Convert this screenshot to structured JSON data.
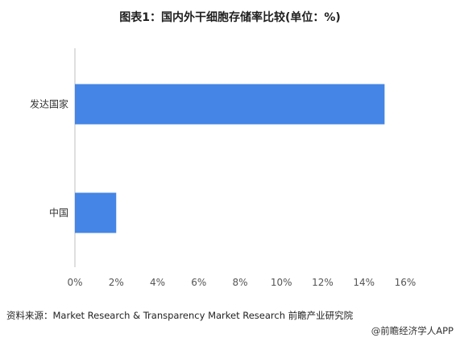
{
  "chart_data": {
    "type": "bar",
    "orientation": "horizontal",
    "title": "图表1：国内外干细胞存储率比较(单位：%)",
    "categories": [
      "发达国家",
      "中国"
    ],
    "values": [
      15,
      2
    ],
    "xlim": [
      0,
      16
    ],
    "x_ticks": [
      "0%",
      "2%",
      "4%",
      "6%",
      "8%",
      "10%",
      "12%",
      "14%",
      "16%"
    ],
    "grid": false,
    "bar_color": "#4485e6"
  },
  "source": "资料来源：Market Research & Transparency Market Research 前瞻产业研究院",
  "credit": "@前瞻经济学人APP"
}
